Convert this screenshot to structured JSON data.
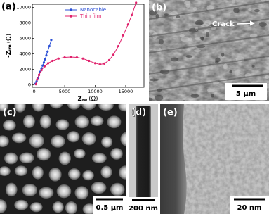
{
  "chart_data": {
    "type": "line",
    "y_label": [
      "-Z",
      "im",
      "(Ω)"
    ],
    "x_label": [
      "Z",
      "re",
      "(Ω)"
    ],
    "xlim": [
      -300,
      18000
    ],
    "xticks": [
      0,
      5000,
      10000,
      15000
    ],
    "ylim": [
      -300,
      10400
    ],
    "yticks": [
      0,
      2000,
      4000,
      6000,
      8000,
      10000
    ],
    "legend": "upper center",
    "series": [
      {
        "name": "Nanocable",
        "color": "#2a4fd6",
        "x": [
          200,
          400,
          600,
          800,
          1000,
          1200,
          1400,
          1600,
          1800,
          2000,
          2200,
          2500,
          2800
        ],
        "values": [
          150,
          450,
          900,
          1300,
          1700,
          2100,
          2500,
          2900,
          3300,
          3800,
          4300,
          5000,
          5800
        ]
      },
      {
        "name": "Thin film",
        "color": "#e0206b",
        "x": [
          300,
          500,
          800,
          1200,
          1700,
          2300,
          3000,
          4000,
          5000,
          6000,
          7000,
          8000,
          9000,
          10000,
          10800,
          11500,
          12300,
          13000,
          13800,
          14600,
          15400,
          16000,
          16700
        ],
        "values": [
          100,
          700,
          1300,
          1900,
          2400,
          2800,
          3100,
          3400,
          3550,
          3600,
          3550,
          3400,
          3100,
          2800,
          2650,
          2750,
          3200,
          3900,
          5000,
          6400,
          7800,
          9000,
          10600
        ]
      }
    ]
  },
  "panel_labels": [
    "(a)",
    "(b)",
    "(c)",
    "(d)",
    "(e)"
  ],
  "annotation": "Crack",
  "scale_bars": [
    "5 µm",
    "0.5 µm",
    "200 nm",
    "20 nm"
  ]
}
